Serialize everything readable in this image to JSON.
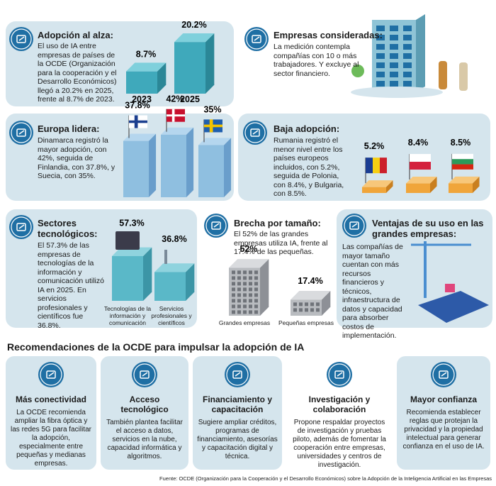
{
  "adoption": {
    "title": "Adopción al alza:",
    "text": "El uso de IA entre empresas de países de la OCDE (Organización para la cooperación y el Desarrollo Económicos) llegó a 20.2% en 2025, frente al 8.7% de 2023.",
    "bars": [
      {
        "category": "2023",
        "value": 8.7,
        "label": "8.7%"
      },
      {
        "category": "2025",
        "value": 20.2,
        "label": "20.2%"
      }
    ]
  },
  "companies": {
    "title": "Empresas consideradas:",
    "text": "La medición contempla compañías con 10 o más trabajadores. Y excluye al sector financiero."
  },
  "europe": {
    "title": "Europa lidera:",
    "text": "Dinamarca registró la mayor adopción, con 42%, seguida de Finlandia, con 37.8%, y Suecia, con 35%.",
    "bars": [
      {
        "value": 37.8,
        "label": "37.8%"
      },
      {
        "value": 42,
        "label": "42%"
      },
      {
        "value": 35,
        "label": "35%"
      }
    ]
  },
  "low": {
    "title": "Baja adopción:",
    "text": "Rumania registró el menor nivel entre los países europeos incluidos, con 5.2%, seguida de Polonia, con 8.4%, y Bulgaria, con 8.5%.",
    "bars": [
      {
        "value": 5.2,
        "label": "5.2%"
      },
      {
        "value": 8.4,
        "label": "8.4%"
      },
      {
        "value": 8.5,
        "label": "8.5%"
      }
    ]
  },
  "sectors": {
    "title": "Sectores tecnológicos:",
    "text": "El 57.3% de las empresas de tecnologías de la información y comunicación utilizó IA en 2025. En servicios profesionales y científicos fue 36.8%.",
    "bars": [
      {
        "category": "Tecnologías de la información y comunicación",
        "value": 57.3,
        "label": "57.3%"
      },
      {
        "category": "Servicios profesionales y científicos",
        "value": 36.8,
        "label": "36.8%"
      }
    ]
  },
  "size": {
    "title": "Brecha por tamaño:",
    "text": "El 52% de las grandes empresas utiliza IA, frente al 17.4% de las pequeñas.",
    "bars": [
      {
        "category": "Grandes empresas",
        "value": 52,
        "label": "52%"
      },
      {
        "category": "Pequeñas empresas",
        "value": 17.4,
        "label": "17.4%"
      }
    ]
  },
  "advantages": {
    "title": "Ventajas de su uso en las grandes empresas:",
    "text": "Las compañías de mayor tamaño cuentan con más recursos financieros y técnicos, infraestructura de datos y capacidad para absorber costos de implementación."
  },
  "recommendations": {
    "title": "Recomendaciones de la OCDE para impulsar la adopción de IA",
    "items": [
      {
        "title": "Más conectividad",
        "text": "La OCDE recomienda ampliar la fibra óptica y las redes 5G para facilitar la adopción, especialmente entre pequeñas y medianas empresas."
      },
      {
        "title": "Acceso tecnológico",
        "text": "También plantea facilitar el acceso a datos, servicios en la nube, capacidad informática y algoritmos."
      },
      {
        "title": "Financiamiento y capacitación",
        "text": "Sugiere ampliar créditos, programas de financiamiento, asesorías y capacitación digital y técnica."
      },
      {
        "title": "Investigación y colaboración",
        "text": "Propone respaldar proyectos de investigación y pruebas piloto, además de fomentar la cooperación entre empresas, universidades y centros de investigación."
      },
      {
        "title": "Mayor confianza",
        "text": "Recomienda establecer reglas que protejan la privacidad y la propiedad intelectual para generar confianza en el uso de IA."
      }
    ]
  },
  "source": "Fuente: OCDE (Organización para la Cooperación y el Desarrollo Económicos) sobre la Adopción de la Inteligencia Artificial en las Empresas"
}
